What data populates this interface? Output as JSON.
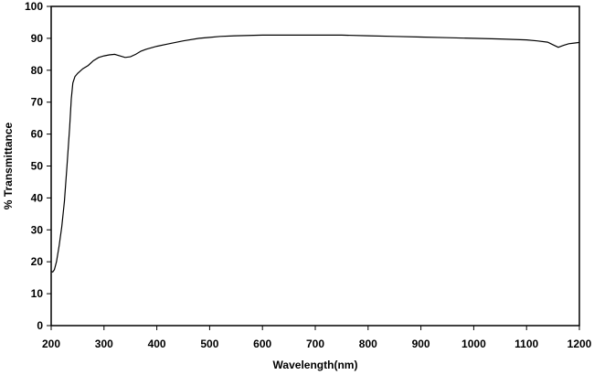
{
  "chart_data": {
    "type": "line",
    "title": "",
    "xlabel": "Wavelength(nm)",
    "ylabel": "% Transmittance",
    "xlim": [
      200,
      1200
    ],
    "ylim": [
      0,
      100
    ],
    "x_ticks": [
      200,
      300,
      400,
      500,
      600,
      700,
      800,
      900,
      1000,
      1100,
      1200
    ],
    "y_ticks": [
      0,
      10,
      20,
      30,
      40,
      50,
      60,
      70,
      80,
      90,
      100
    ],
    "x_tick_labels": [
      "200",
      "300",
      "400",
      "500",
      "600",
      "700",
      "800",
      "900",
      "1000",
      "1100",
      "1200"
    ],
    "y_tick_labels": [
      "0",
      "10",
      "20",
      "30",
      "40",
      "50",
      "60",
      "70",
      "80",
      "90",
      "100"
    ],
    "grid": false,
    "legend": "none",
    "line_color": "#000000",
    "series": [
      {
        "x": [
          200,
          203,
          206,
          210,
          215,
          220,
          225,
          230,
          235,
          238,
          241,
          245,
          250,
          260,
          270,
          280,
          290,
          300,
          310,
          320,
          330,
          340,
          350,
          360,
          370,
          380,
          400,
          420,
          450,
          480,
          500,
          520,
          550,
          600,
          650,
          700,
          750,
          800,
          850,
          900,
          950,
          1000,
          1050,
          1100,
          1120,
          1140,
          1150,
          1160,
          1170,
          1180,
          1190,
          1200
        ],
        "y": [
          17,
          16.8,
          17.5,
          20,
          25,
          31,
          39,
          50,
          62,
          71,
          76,
          78,
          79,
          80.5,
          81.5,
          83,
          84,
          84.5,
          84.8,
          85,
          84.5,
          84,
          84.2,
          85,
          86,
          86.6,
          87.5,
          88.2,
          89.2,
          90,
          90.3,
          90.6,
          90.8,
          91,
          91,
          91,
          91,
          90.8,
          90.6,
          90.4,
          90.2,
          90,
          89.8,
          89.5,
          89.2,
          88.8,
          88,
          87.2,
          87.8,
          88.3,
          88.5,
          88.7
        ]
      }
    ]
  }
}
